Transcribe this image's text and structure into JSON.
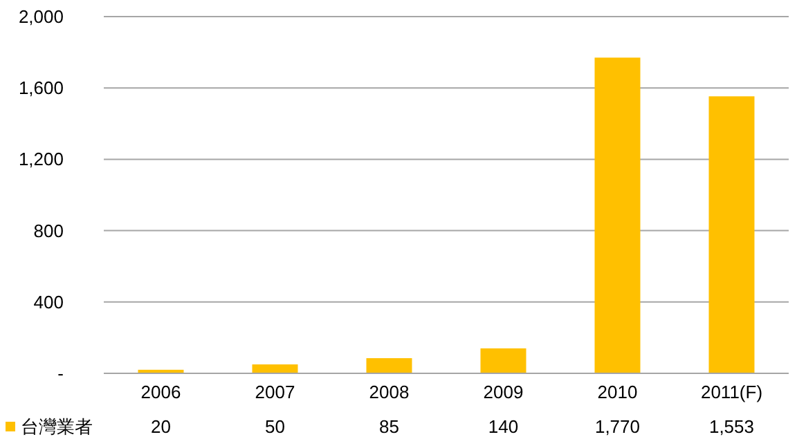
{
  "chart_data": {
    "type": "bar",
    "categories": [
      "2006",
      "2007",
      "2008",
      "2009",
      "2010",
      "2011(F)"
    ],
    "series": [
      {
        "name": "台灣業者",
        "color": "#ffc000",
        "values": [
          20,
          50,
          85,
          140,
          1770,
          1553
        ],
        "value_labels": [
          "20",
          "50",
          "85",
          "140",
          "1,770",
          "1,553"
        ]
      }
    ],
    "ylim": [
      0,
      2000
    ],
    "yticks": [
      {
        "value": 0,
        "label": "-"
      },
      400,
      800,
      {
        "value": 1200,
        "label": "1,200"
      },
      {
        "value": 1600,
        "label": "1,600"
      },
      {
        "value": 2000,
        "label": "2,000"
      }
    ],
    "grid": "y",
    "legend": "bottom left"
  }
}
